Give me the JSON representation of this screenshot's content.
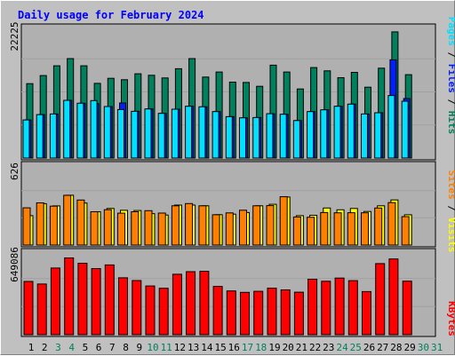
{
  "chart_data": {
    "type": "bar",
    "title": "Daily usage for February 2024",
    "days": [
      1,
      2,
      3,
      4,
      5,
      6,
      7,
      8,
      9,
      10,
      11,
      12,
      13,
      14,
      15,
      16,
      17,
      18,
      19,
      20,
      21,
      22,
      23,
      24,
      25,
      26,
      27,
      28,
      29,
      30,
      31
    ],
    "weekend_days": [
      3,
      4,
      10,
      11,
      17,
      18,
      24,
      25
    ],
    "future_days": [
      30,
      31
    ],
    "panels": [
      {
        "name": "hits-files-pages",
        "ymax_label": "22225",
        "ymax": 22225,
        "series": [
          {
            "name": "Hits",
            "color": "#00805c",
            "values": [
              12500,
              13850,
              15500,
              16700,
              15500,
              12550,
              13400,
              13150,
              14150,
              13900,
              13450,
              15000,
              16700,
              13600,
              14450,
              12750,
              12700,
              12050,
              15600,
              14450,
              11600,
              15200,
              14650,
              13500,
              14400,
              11900,
              15100,
              21200,
              14000
            ]
          },
          {
            "name": "Files",
            "color": "#0020ff",
            "values": [
              6400,
              7300,
              7400,
              9700,
              9200,
              9150,
              8650,
              9250,
              7850,
              8250,
              7500,
              8200,
              8700,
              8600,
              7800,
              6950,
              6750,
              6800,
              7450,
              7350,
              6300,
              7800,
              8100,
              8700,
              9050,
              7400,
              7600,
              16500,
              10000
            ]
          },
          {
            "name": "Pages",
            "color": "#00e0ff",
            "values": [
              6400,
              7300,
              7400,
              9700,
              9200,
              9650,
              8650,
              8150,
              7850,
              8250,
              7500,
              8200,
              8700,
              8600,
              7800,
              6950,
              6750,
              6800,
              7450,
              7350,
              6300,
              7800,
              8100,
              8700,
              9050,
              7400,
              7600,
              10500,
              9550
            ]
          }
        ],
        "axis_labels": [
          "Pages",
          "Files",
          "Hits"
        ]
      },
      {
        "name": "visits-sites",
        "ymax_label": "626",
        "ymax": 626,
        "series": [
          {
            "name": "Visits",
            "color": "#ff8000",
            "values": [
              285,
              323,
              298,
              381,
              345,
              255,
              271,
              244,
              255,
              263,
              245,
              301,
              318,
              301,
              232,
              246,
              267,
              301,
              302,
              370,
              215,
              213,
              249,
              247,
              248,
              247,
              284,
              325,
              218
            ]
          },
          {
            "name": "Sites",
            "color": "#ffff00",
            "values": [
              225,
              317,
              300,
              382,
              322,
              255,
              280,
              266,
              265,
              241,
              230,
              306,
              306,
              301,
              233,
              237,
              249,
              301,
              312,
              368,
              225,
              228,
              284,
              270,
              280,
              257,
              301,
              346,
              232
            ]
          }
        ],
        "axis_labels": [
          "Sites",
          "Visits"
        ]
      },
      {
        "name": "kbytes",
        "ymax_label": "649086",
        "ymax": 649086,
        "series": [
          {
            "name": "KBytes",
            "color": "#ff0000",
            "values": [
              410000,
              390000,
              513000,
              591000,
              550000,
              509000,
              537000,
              438000,
              417000,
              375000,
              357000,
              465000,
              485000,
              488000,
              372000,
              337000,
              326000,
              334000,
              358000,
              345000,
              327000,
              427000,
              411000,
              436000,
              416000,
              332000,
              547000,
              583000,
              412000
            ]
          }
        ],
        "axis_labels": [
          "KBytes"
        ]
      }
    ]
  },
  "colors": {
    "background": "#c0c0c0",
    "plot_background": "#b0b0b0",
    "title": "#0000ff",
    "weekday_label": "#000000",
    "weekend_label": "#00805c",
    "hits": "#00805c",
    "files": "#0020ff",
    "pages": "#00e0ff",
    "sites": "#ffff00",
    "visits": "#ff8000",
    "kbytes": "#ff0000"
  }
}
